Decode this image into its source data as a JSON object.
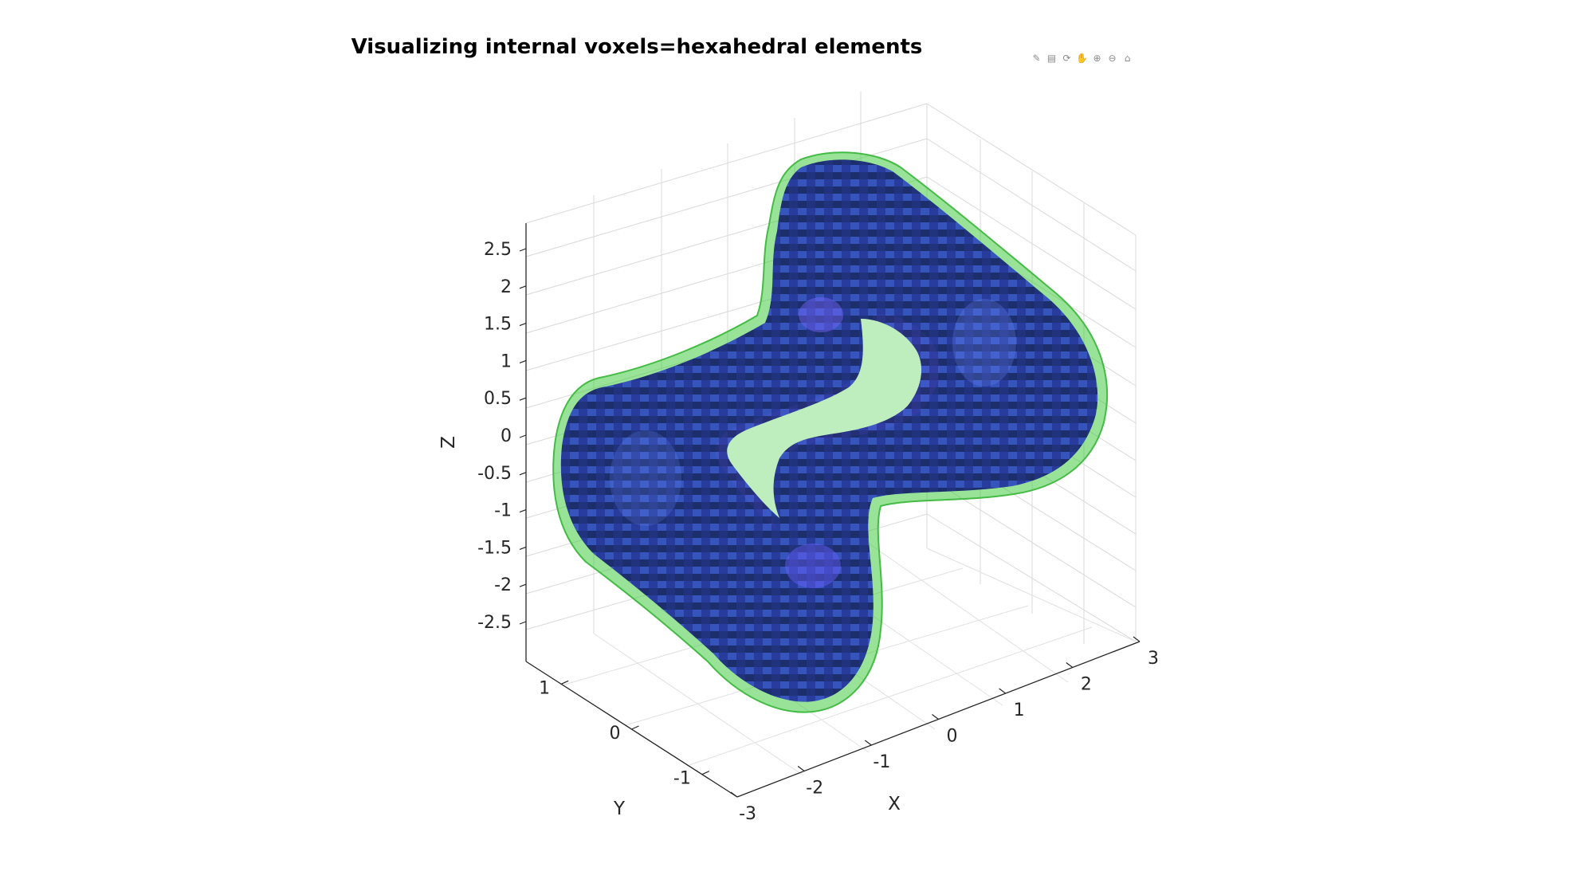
{
  "figure": {
    "title": "Visualizing internal voxels=hexahedral elements",
    "toolbar": [
      {
        "icon": "brush-icon",
        "glyph": "✎"
      },
      {
        "icon": "datatip-icon",
        "glyph": "▤"
      },
      {
        "icon": "rotate-3d-icon",
        "glyph": "⟳"
      },
      {
        "icon": "pan-hand-icon",
        "glyph": "✋"
      },
      {
        "icon": "zoom-in-icon",
        "glyph": "⊕"
      },
      {
        "icon": "zoom-out-icon",
        "glyph": "⊖"
      },
      {
        "icon": "restore-view-home-icon",
        "glyph": "⌂"
      }
    ]
  },
  "chart_data": {
    "type": "3d-surface-voxel",
    "title": "Visualizing internal voxels=hexahedral elements",
    "xlabel": "X",
    "ylabel": "Y",
    "zlabel": "Z",
    "xticks": [
      "-3",
      "-2",
      "-1",
      "0",
      "1",
      "2",
      "3"
    ],
    "yticks": [
      "-1",
      "0",
      "1"
    ],
    "zticks": [
      "-2.5",
      "-2",
      "-1.5",
      "-1",
      "-0.5",
      "0",
      "0.5",
      "1",
      "1.5",
      "2",
      "2.5"
    ],
    "xlim": [
      -3,
      3
    ],
    "ylim": [
      -1.5,
      1.5
    ],
    "zlim": [
      -3,
      3
    ],
    "grid": true,
    "series": [
      {
        "kind": "transparent-surface",
        "color": "#44cc44"
      },
      {
        "kind": "hexahedral-voxels",
        "color": "#1a2fa6",
        "edge_color": "#001060"
      }
    ]
  }
}
